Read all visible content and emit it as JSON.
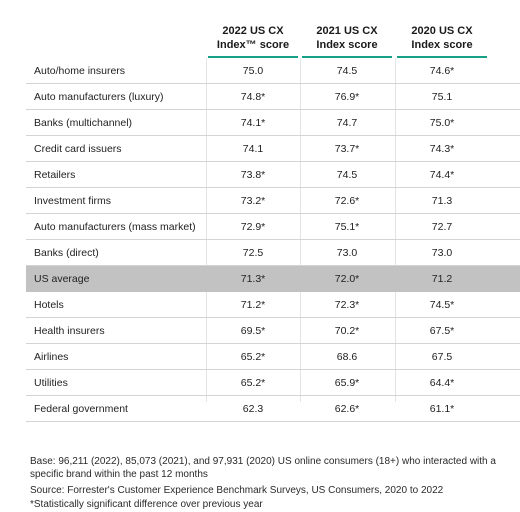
{
  "headers": [
    {
      "line1": "2022 US CX",
      "line2": "Index™ score"
    },
    {
      "line1": "2021 US CX",
      "line2": "Index score"
    },
    {
      "line1": "2020 US CX",
      "line2": "Index score"
    }
  ],
  "rows": [
    {
      "label": "Auto/home insurers",
      "v2022": "75.0",
      "v2021": "74.5",
      "v2020": "74.6*"
    },
    {
      "label": "Auto manufacturers (luxury)",
      "v2022": "74.8*",
      "v2021": "76.9*",
      "v2020": "75.1"
    },
    {
      "label": "Banks (multichannel)",
      "v2022": "74.1*",
      "v2021": "74.7",
      "v2020": "75.0*"
    },
    {
      "label": "Credit card issuers",
      "v2022": "74.1",
      "v2021": "73.7*",
      "v2020": "74.3*"
    },
    {
      "label": "Retailers",
      "v2022": "73.8*",
      "v2021": "74.5",
      "v2020": "74.4*"
    },
    {
      "label": "Investment firms",
      "v2022": "73.2*",
      "v2021": "72.6*",
      "v2020": "71.3"
    },
    {
      "label": "Auto manufacturers (mass market)",
      "v2022": "72.9*",
      "v2021": "75.1*",
      "v2020": "72.7"
    },
    {
      "label": "Banks (direct)",
      "v2022": "72.5",
      "v2021": "73.0",
      "v2020": "73.0"
    },
    {
      "label": "US average",
      "v2022": "71.3*",
      "v2021": "72.0*",
      "v2020": "71.2",
      "highlight": true
    },
    {
      "label": "Hotels",
      "v2022": "71.2*",
      "v2021": "72.3*",
      "v2020": "74.5*"
    },
    {
      "label": "Health insurers",
      "v2022": "69.5*",
      "v2021": "70.2*",
      "v2020": "67.5*"
    },
    {
      "label": "Airlines",
      "v2022": "65.2*",
      "v2021": "68.6",
      "v2020": "67.5"
    },
    {
      "label": "Utilities",
      "v2022": "65.2*",
      "v2021": "65.9*",
      "v2020": "64.4*"
    },
    {
      "label": "Federal government",
      "v2022": "62.3",
      "v2021": "62.6*",
      "v2020": "61.1*"
    }
  ],
  "footnotes": {
    "base": "Base: 96,211 (2022), 85,073 (2021), and 97,931 (2020) US online consumers (18+) who interacted with a specific brand within the past 12 months",
    "source": "Source: Forrester's Customer Experience Benchmark Surveys, US Consumers, 2020 to 2022",
    "significance": "*Statistically significant difference over previous year"
  }
}
